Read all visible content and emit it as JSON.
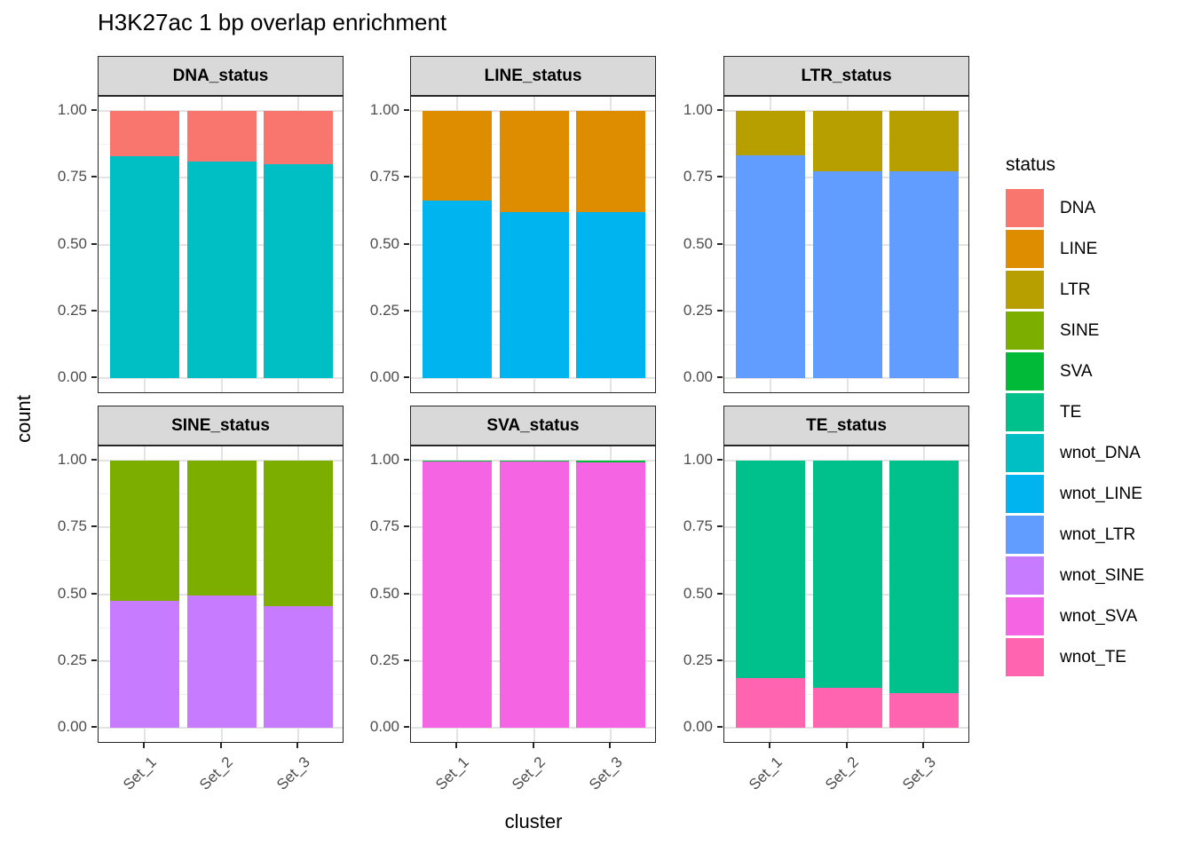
{
  "title": "H3K27ac 1 bp overlap enrichment",
  "axes": {
    "x_title": "cluster",
    "y_title": "count",
    "y_ticks": [
      "1.00",
      "0.75",
      "0.50",
      "0.25",
      "0.00"
    ],
    "x_ticks": [
      "Set_1",
      "Set_2",
      "Set_3"
    ]
  },
  "legend": {
    "title": "status",
    "entries": [
      {
        "label": "DNA",
        "color": "#F8766D"
      },
      {
        "label": "LINE",
        "color": "#DE8C00"
      },
      {
        "label": "LTR",
        "color": "#B79F00"
      },
      {
        "label": "SINE",
        "color": "#7CAE00"
      },
      {
        "label": "SVA",
        "color": "#00BA38"
      },
      {
        "label": "TE",
        "color": "#00C08B"
      },
      {
        "label": "wnot_DNA",
        "color": "#00BFC4"
      },
      {
        "label": "wnot_LINE",
        "color": "#00B4F0"
      },
      {
        "label": "wnot_LTR",
        "color": "#619CFF"
      },
      {
        "label": "wnot_SINE",
        "color": "#C77CFF"
      },
      {
        "label": "wnot_SVA",
        "color": "#F564E3"
      },
      {
        "label": "wnot_TE",
        "color": "#FF64B0"
      }
    ]
  },
  "chart_data": {
    "type": "bar",
    "stacked": true,
    "normalized": true,
    "title": "H3K27ac 1 bp overlap enrichment",
    "xlabel": "cluster",
    "ylabel": "count",
    "ylim": [
      0,
      1
    ],
    "grid": true,
    "legend_position": "right",
    "categories": [
      "Set_1",
      "Set_2",
      "Set_3"
    ],
    "stack_order_note": "first series in each facet is the bottom segment",
    "facets": [
      {
        "name": "DNA_status",
        "series": [
          {
            "name": "wnot_DNA",
            "values": [
              0.83,
              0.81,
              0.8
            ]
          },
          {
            "name": "DNA",
            "values": [
              0.17,
              0.19,
              0.2
            ]
          }
        ]
      },
      {
        "name": "LINE_status",
        "series": [
          {
            "name": "wnot_LINE",
            "values": [
              0.665,
              0.62,
              0.62
            ]
          },
          {
            "name": "LINE",
            "values": [
              0.335,
              0.38,
              0.38
            ]
          }
        ]
      },
      {
        "name": "LTR_status",
        "series": [
          {
            "name": "wnot_LTR",
            "values": [
              0.835,
              0.775,
              0.775
            ]
          },
          {
            "name": "LTR",
            "values": [
              0.165,
              0.225,
              0.225
            ]
          }
        ]
      },
      {
        "name": "SINE_status",
        "series": [
          {
            "name": "wnot_SINE",
            "values": [
              0.475,
              0.495,
              0.455
            ]
          },
          {
            "name": "SINE",
            "values": [
              0.525,
              0.505,
              0.545
            ]
          }
        ]
      },
      {
        "name": "SVA_status",
        "series": [
          {
            "name": "wnot_SVA",
            "values": [
              0.997,
              0.997,
              0.994
            ]
          },
          {
            "name": "SVA",
            "values": [
              0.003,
              0.003,
              0.006
            ]
          }
        ]
      },
      {
        "name": "TE_status",
        "series": [
          {
            "name": "wnot_TE",
            "values": [
              0.185,
              0.15,
              0.13
            ]
          },
          {
            "name": "TE",
            "values": [
              0.815,
              0.85,
              0.87
            ]
          }
        ]
      }
    ]
  }
}
